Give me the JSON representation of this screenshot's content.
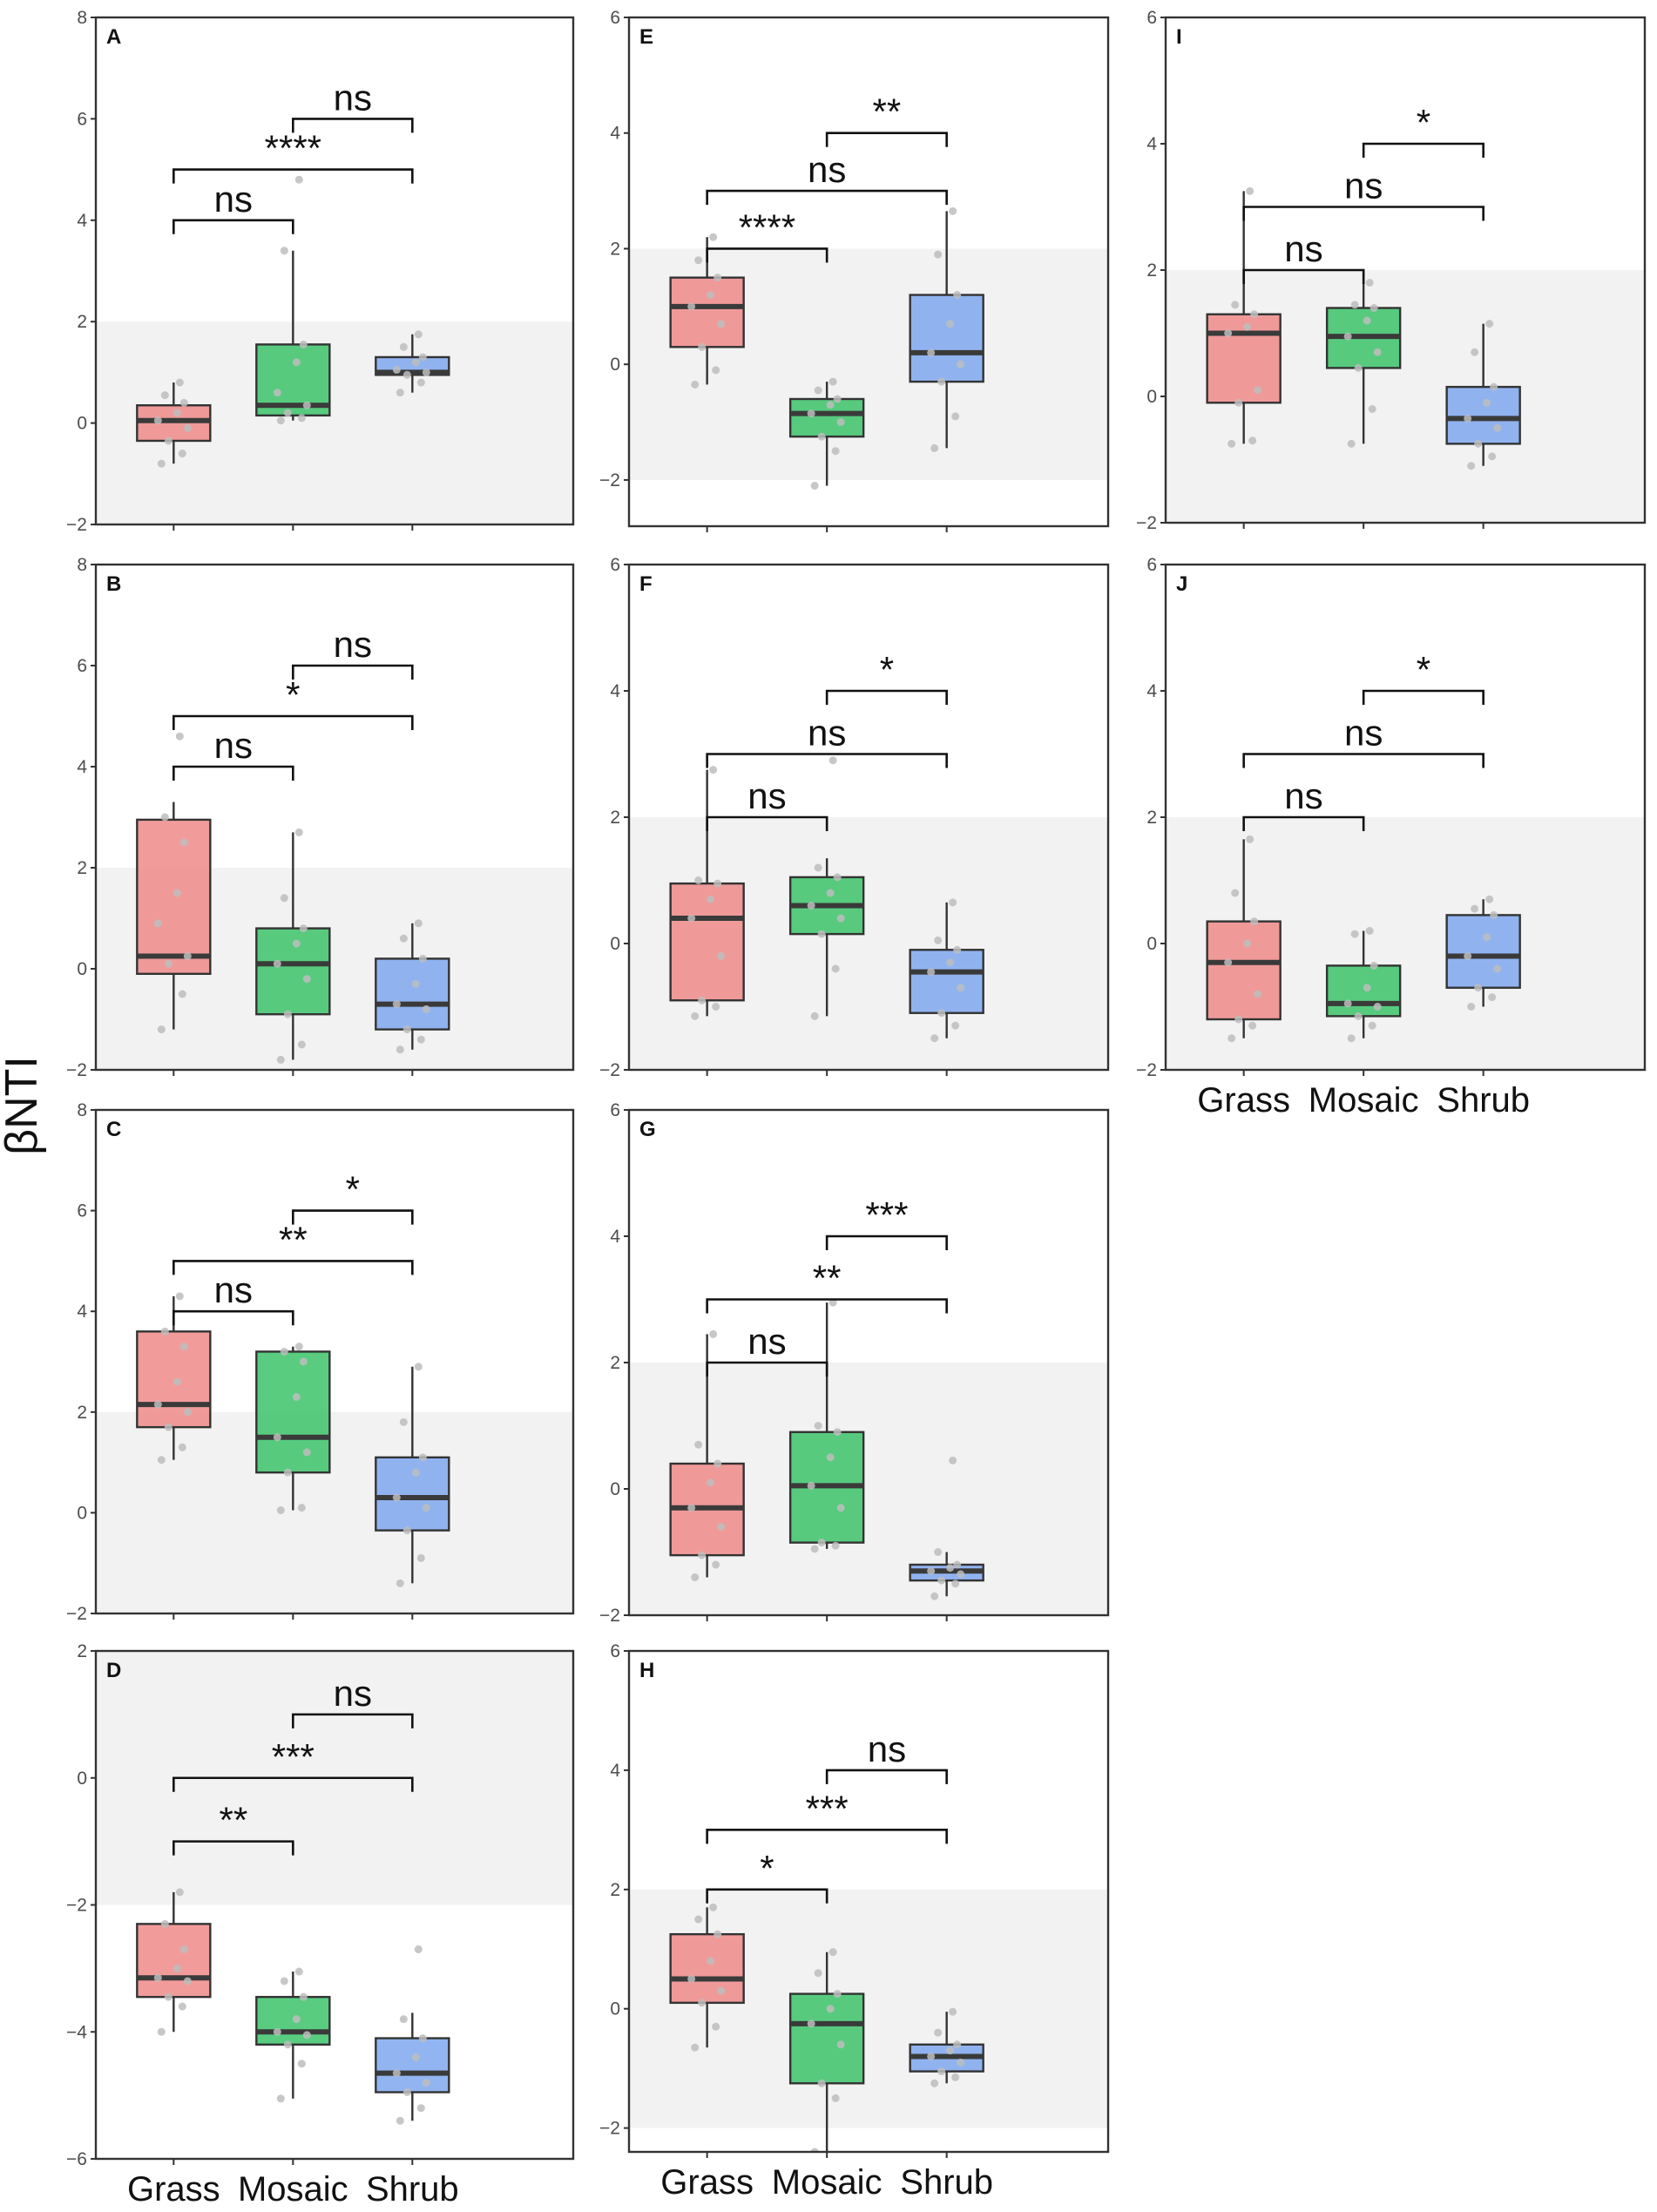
{
  "chart_data": {
    "type": "box",
    "y_axis_label": "βNTI",
    "categories": [
      "Grass",
      "Mosaic",
      "Shrub"
    ],
    "colors": {
      "Grass": "#f08a8a",
      "Mosaic": "#3cc36a",
      "Shrub": "#7fa8f0"
    },
    "reference_band": [
      -2,
      2
    ],
    "panels": [
      {
        "label": "A",
        "ylim": [
          -2,
          8
        ],
        "yticks": [
          "−2",
          "0",
          "2",
          "4",
          "6",
          "8"
        ],
        "show_xlabels": false,
        "boxes": [
          {
            "q1": -0.35,
            "median": 0.05,
            "q3": 0.35,
            "lo": -0.8,
            "hi": 0.8,
            "points": [
              -0.8,
              -0.6,
              -0.35,
              -0.1,
              0.05,
              0.2,
              0.4,
              0.55,
              0.8
            ]
          },
          {
            "q1": 0.15,
            "median": 0.35,
            "q3": 1.55,
            "lo": 0.05,
            "hi": 3.4,
            "points": [
              0.05,
              0.1,
              0.2,
              0.35,
              0.6,
              1.2,
              1.55,
              3.4,
              4.8
            ]
          },
          {
            "q1": 0.95,
            "median": 1.0,
            "q3": 1.3,
            "lo": 0.6,
            "hi": 1.75,
            "points": [
              0.6,
              0.8,
              0.95,
              1.0,
              1.05,
              1.2,
              1.3,
              1.5,
              1.75
            ]
          }
        ],
        "comparisons": [
          {
            "from": 0,
            "to": 1,
            "at": 4.0,
            "label": "ns"
          },
          {
            "from": 0,
            "to": 2,
            "at": 5.0,
            "label": "****"
          },
          {
            "from": 1,
            "to": 2,
            "at": 6.0,
            "label": "ns"
          }
        ]
      },
      {
        "label": "B",
        "ylim": [
          -2,
          8
        ],
        "yticks": [
          "−2",
          "0",
          "2",
          "4",
          "6",
          "8"
        ],
        "show_xlabels": false,
        "boxes": [
          {
            "q1": -0.1,
            "median": 0.25,
            "q3": 2.95,
            "lo": -1.2,
            "hi": 3.3,
            "points": [
              -1.2,
              -0.5,
              0.1,
              0.25,
              0.9,
              1.5,
              2.5,
              3.0,
              4.6
            ]
          },
          {
            "q1": -0.9,
            "median": 0.1,
            "q3": 0.8,
            "lo": -1.8,
            "hi": 2.7,
            "points": [
              -1.8,
              -1.5,
              -0.9,
              -0.2,
              0.1,
              0.5,
              0.8,
              1.4,
              2.7
            ]
          },
          {
            "q1": -1.2,
            "median": -0.7,
            "q3": 0.2,
            "lo": -1.6,
            "hi": 0.9,
            "points": [
              -1.6,
              -1.4,
              -1.2,
              -0.8,
              -0.7,
              -0.3,
              0.2,
              0.6,
              0.9
            ]
          }
        ],
        "comparisons": [
          {
            "from": 0,
            "to": 1,
            "at": 4.0,
            "label": "ns"
          },
          {
            "from": 0,
            "to": 2,
            "at": 5.0,
            "label": "*"
          },
          {
            "from": 1,
            "to": 2,
            "at": 6.0,
            "label": "ns"
          }
        ]
      },
      {
        "label": "C",
        "ylim": [
          -2,
          8
        ],
        "yticks": [
          "−2",
          "0",
          "2",
          "4",
          "6",
          "8"
        ],
        "show_xlabels": false,
        "boxes": [
          {
            "q1": 1.7,
            "median": 2.15,
            "q3": 3.6,
            "lo": 1.05,
            "hi": 4.3,
            "points": [
              1.05,
              1.3,
              1.7,
              2.0,
              2.15,
              2.6,
              3.3,
              3.6,
              4.3
            ]
          },
          {
            "q1": 0.8,
            "median": 1.5,
            "q3": 3.2,
            "lo": 0.05,
            "hi": 3.3,
            "points": [
              0.05,
              0.1,
              0.8,
              1.2,
              1.5,
              2.3,
              3.0,
              3.2,
              3.3
            ]
          },
          {
            "q1": -0.35,
            "median": 0.3,
            "q3": 1.1,
            "lo": -1.4,
            "hi": 2.9,
            "points": [
              -1.4,
              -0.9,
              -0.35,
              0.1,
              0.3,
              0.8,
              1.1,
              1.8,
              2.9
            ]
          }
        ],
        "comparisons": [
          {
            "from": 0,
            "to": 1,
            "at": 4.0,
            "label": "ns"
          },
          {
            "from": 0,
            "to": 2,
            "at": 5.0,
            "label": "**"
          },
          {
            "from": 1,
            "to": 2,
            "at": 6.0,
            "label": "*"
          }
        ]
      },
      {
        "label": "D",
        "ylim": [
          -6,
          2
        ],
        "yticks": [
          "−6",
          "−4",
          "−2",
          "0",
          "2"
        ],
        "show_xlabels": true,
        "boxes": [
          {
            "q1": -3.45,
            "median": -3.15,
            "q3": -2.3,
            "lo": -4.0,
            "hi": -1.8,
            "points": [
              -4.0,
              -3.6,
              -3.45,
              -3.2,
              -3.15,
              -3.0,
              -2.7,
              -2.3,
              -1.8
            ]
          },
          {
            "q1": -4.2,
            "median": -4.0,
            "q3": -3.45,
            "lo": -5.05,
            "hi": -3.05,
            "points": [
              -5.05,
              -4.5,
              -4.2,
              -4.05,
              -4.0,
              -3.8,
              -3.45,
              -3.2,
              -3.05
            ]
          },
          {
            "q1": -4.95,
            "median": -4.65,
            "q3": -4.1,
            "lo": -5.4,
            "hi": -3.7,
            "points": [
              -5.4,
              -5.2,
              -4.95,
              -4.8,
              -4.65,
              -4.4,
              -4.1,
              -3.8,
              -2.7
            ]
          }
        ],
        "comparisons": [
          {
            "from": 0,
            "to": 1,
            "at": -1.0,
            "label": "**"
          },
          {
            "from": 0,
            "to": 2,
            "at": 0.0,
            "label": "***"
          },
          {
            "from": 1,
            "to": 2,
            "at": 1.0,
            "label": "ns"
          }
        ]
      },
      {
        "label": "E",
        "ylim": [
          -2.8,
          6
        ],
        "yticks": [
          "−2",
          "0",
          "2",
          "4",
          "6"
        ],
        "show_xlabels": false,
        "boxes": [
          {
            "q1": 0.3,
            "median": 1.0,
            "q3": 1.5,
            "lo": -0.35,
            "hi": 2.2,
            "points": [
              -0.35,
              -0.1,
              0.3,
              0.7,
              1.0,
              1.2,
              1.5,
              1.8,
              2.2
            ]
          },
          {
            "q1": -1.25,
            "median": -0.85,
            "q3": -0.6,
            "lo": -2.1,
            "hi": -0.3,
            "points": [
              -2.1,
              -1.5,
              -1.25,
              -1.0,
              -0.85,
              -0.7,
              -0.6,
              -0.45,
              -0.3
            ]
          },
          {
            "q1": -0.3,
            "median": 0.2,
            "q3": 1.2,
            "lo": -1.45,
            "hi": 2.65,
            "points": [
              -1.45,
              -0.9,
              -0.3,
              0.0,
              0.2,
              0.7,
              1.2,
              1.9,
              2.65
            ]
          }
        ],
        "comparisons": [
          {
            "from": 0,
            "to": 1,
            "at": 2.0,
            "label": "****"
          },
          {
            "from": 0,
            "to": 2,
            "at": 3.0,
            "label": "ns"
          },
          {
            "from": 1,
            "to": 2,
            "at": 4.0,
            "label": "**"
          }
        ]
      },
      {
        "label": "F",
        "ylim": [
          -2,
          6
        ],
        "yticks": [
          "−2",
          "0",
          "2",
          "4",
          "6"
        ],
        "show_xlabels": false,
        "boxes": [
          {
            "q1": -0.9,
            "median": 0.4,
            "q3": 0.95,
            "lo": -1.15,
            "hi": 2.75,
            "points": [
              -1.15,
              -1.0,
              -0.9,
              -0.2,
              0.4,
              0.7,
              0.95,
              1.0,
              2.75
            ]
          },
          {
            "q1": 0.15,
            "median": 0.6,
            "q3": 1.05,
            "lo": -1.15,
            "hi": 1.35,
            "points": [
              -1.15,
              -0.4,
              0.15,
              0.4,
              0.6,
              0.8,
              1.05,
              1.2,
              2.9
            ]
          },
          {
            "q1": -1.1,
            "median": -0.45,
            "q3": -0.1,
            "lo": -1.5,
            "hi": 0.65,
            "points": [
              -1.5,
              -1.3,
              -1.1,
              -0.7,
              -0.45,
              -0.3,
              -0.1,
              0.05,
              0.65
            ]
          }
        ],
        "comparisons": [
          {
            "from": 0,
            "to": 1,
            "at": 2.0,
            "label": "ns"
          },
          {
            "from": 0,
            "to": 2,
            "at": 3.0,
            "label": "ns"
          },
          {
            "from": 1,
            "to": 2,
            "at": 4.0,
            "label": "*"
          }
        ]
      },
      {
        "label": "G",
        "ylim": [
          -2,
          6
        ],
        "yticks": [
          "−2",
          "0",
          "2",
          "4",
          "6"
        ],
        "show_xlabels": false,
        "boxes": [
          {
            "q1": -1.05,
            "median": -0.3,
            "q3": 0.4,
            "lo": -1.4,
            "hi": 2.45,
            "points": [
              -1.4,
              -1.2,
              -1.05,
              -0.6,
              -0.3,
              0.1,
              0.4,
              0.7,
              2.45
            ]
          },
          {
            "q1": -0.85,
            "median": 0.05,
            "q3": 0.9,
            "lo": -0.95,
            "hi": 2.95,
            "points": [
              -0.95,
              -0.9,
              -0.85,
              -0.3,
              0.05,
              0.5,
              0.9,
              1.0,
              2.95
            ]
          },
          {
            "q1": -1.45,
            "median": -1.3,
            "q3": -1.2,
            "lo": -1.7,
            "hi": -1.0,
            "points": [
              -1.7,
              -1.5,
              -1.45,
              -1.35,
              -1.3,
              -1.25,
              -1.2,
              -1.0,
              0.45
            ]
          }
        ],
        "comparisons": [
          {
            "from": 0,
            "to": 1,
            "at": 2.0,
            "label": "ns"
          },
          {
            "from": 0,
            "to": 2,
            "at": 3.0,
            "label": "**"
          },
          {
            "from": 1,
            "to": 2,
            "at": 4.0,
            "label": "***"
          }
        ]
      },
      {
        "label": "H",
        "ylim": [
          -2.4,
          6
        ],
        "yticks": [
          "−2",
          "0",
          "2",
          "4",
          "6"
        ],
        "show_xlabels": true,
        "boxes": [
          {
            "q1": 0.1,
            "median": 0.5,
            "q3": 1.25,
            "lo": -0.65,
            "hi": 1.7,
            "points": [
              -0.65,
              -0.3,
              0.1,
              0.3,
              0.5,
              0.8,
              1.25,
              1.5,
              1.7
            ]
          },
          {
            "q1": -1.25,
            "median": -0.25,
            "q3": 0.25,
            "lo": -2.4,
            "hi": 0.95,
            "points": [
              -2.4,
              -1.5,
              -1.25,
              -0.6,
              -0.25,
              0.0,
              0.25,
              0.6,
              0.95
            ]
          },
          {
            "q1": -1.05,
            "median": -0.8,
            "q3": -0.6,
            "lo": -1.25,
            "hi": -0.05,
            "points": [
              -1.25,
              -1.15,
              -1.05,
              -0.9,
              -0.8,
              -0.7,
              -0.6,
              -0.4,
              -0.05
            ]
          }
        ],
        "comparisons": [
          {
            "from": 0,
            "to": 1,
            "at": 2.0,
            "label": "*"
          },
          {
            "from": 0,
            "to": 2,
            "at": 3.0,
            "label": "***"
          },
          {
            "from": 1,
            "to": 2,
            "at": 4.0,
            "label": "ns"
          }
        ]
      },
      {
        "label": "I",
        "ylim": [
          -2,
          6
        ],
        "yticks": [
          "−2",
          "0",
          "2",
          "4",
          "6"
        ],
        "show_xlabels": false,
        "boxes": [
          {
            "q1": -0.1,
            "median": 1.0,
            "q3": 1.3,
            "lo": -0.75,
            "hi": 3.25,
            "points": [
              -0.75,
              -0.7,
              -0.1,
              0.1,
              1.0,
              1.1,
              1.3,
              1.45,
              3.25
            ]
          },
          {
            "q1": 0.45,
            "median": 0.95,
            "q3": 1.4,
            "lo": -0.75,
            "hi": 1.8,
            "points": [
              -0.75,
              -0.2,
              0.45,
              0.7,
              0.95,
              1.2,
              1.4,
              1.45,
              1.8
            ]
          },
          {
            "q1": -0.75,
            "median": -0.35,
            "q3": 0.15,
            "lo": -1.1,
            "hi": 1.15,
            "points": [
              -1.1,
              -0.95,
              -0.75,
              -0.5,
              -0.35,
              -0.1,
              0.15,
              0.7,
              1.15
            ]
          }
        ],
        "comparisons": [
          {
            "from": 0,
            "to": 1,
            "at": 2.0,
            "label": "ns"
          },
          {
            "from": 0,
            "to": 2,
            "at": 3.0,
            "label": "ns"
          },
          {
            "from": 1,
            "to": 2,
            "at": 4.0,
            "label": "*"
          }
        ]
      },
      {
        "label": "J",
        "ylim": [
          -2,
          6
        ],
        "yticks": [
          "−2",
          "0",
          "2",
          "4",
          "6"
        ],
        "show_xlabels": true,
        "boxes": [
          {
            "q1": -1.2,
            "median": -0.3,
            "q3": 0.35,
            "lo": -1.5,
            "hi": 1.65,
            "points": [
              -1.5,
              -1.3,
              -1.2,
              -0.8,
              -0.3,
              0.0,
              0.35,
              0.8,
              1.65
            ]
          },
          {
            "q1": -1.15,
            "median": -0.95,
            "q3": -0.35,
            "lo": -1.5,
            "hi": 0.2,
            "points": [
              -1.5,
              -1.3,
              -1.15,
              -1.0,
              -0.95,
              -0.7,
              -0.35,
              0.15,
              0.2
            ]
          },
          {
            "q1": -0.7,
            "median": -0.2,
            "q3": 0.45,
            "lo": -1.0,
            "hi": 0.7,
            "points": [
              -1.0,
              -0.85,
              -0.7,
              -0.4,
              -0.2,
              0.1,
              0.45,
              0.55,
              0.7
            ]
          }
        ],
        "comparisons": [
          {
            "from": 0,
            "to": 1,
            "at": 2.0,
            "label": "ns"
          },
          {
            "from": 0,
            "to": 2,
            "at": 3.0,
            "label": "ns"
          },
          {
            "from": 1,
            "to": 2,
            "at": 4.0,
            "label": "*"
          }
        ]
      }
    ]
  }
}
